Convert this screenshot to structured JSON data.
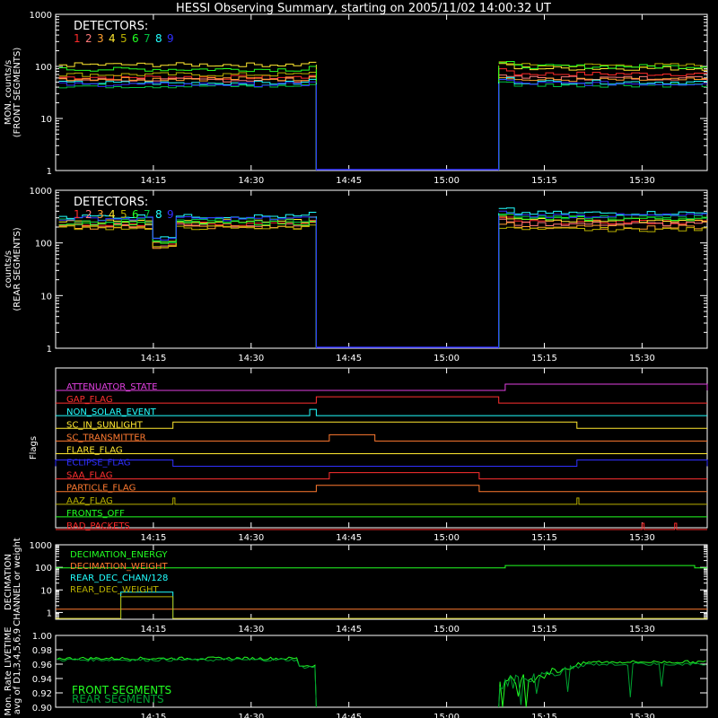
{
  "title": "HESSI Observing Summary, starting on 2005/11/02 14:00:32 UT",
  "colors": {
    "d1": "#ff2a2a",
    "d2": "#ff7a7a",
    "d3": "#ffa030",
    "d4": "#ffe830",
    "d5": "#b8b000",
    "d6": "#22ff22",
    "d7": "#00c040",
    "d8": "#22ffff",
    "d9": "#3030ff",
    "axis": "#ffffff"
  },
  "time_ticks": [
    "14:15",
    "14:30",
    "14:45",
    "15:00",
    "15:15",
    "15:30"
  ],
  "chart_data": [
    {
      "type": "line",
      "panel": "front",
      "ylabel": [
        "MON. counts/s",
        "(FRONT SEGMENTS)"
      ],
      "yscale": "log",
      "ylim": [
        1,
        1000
      ],
      "yticks": [
        "1",
        "10",
        "100",
        "1000"
      ],
      "legend_title": "DETECTORS:",
      "legend_numbers": [
        "1",
        "2",
        "3",
        "4",
        "5",
        "6",
        "7",
        "8",
        "9"
      ],
      "data_gap": [
        "14:40",
        "15:08"
      ],
      "series": [
        {
          "name": "1",
          "pre": 62,
          "post": 72
        },
        {
          "name": "2",
          "pre": 55,
          "post": 60
        },
        {
          "name": "3",
          "pre": 58,
          "post": 55
        },
        {
          "name": "4",
          "pre": 108,
          "post": 92
        },
        {
          "name": "5",
          "pre": 70,
          "post": 105
        },
        {
          "name": "6",
          "pre": 88,
          "post": 100
        },
        {
          "name": "7",
          "pre": 42,
          "post": 44
        },
        {
          "name": "8",
          "pre": 48,
          "post": 50
        },
        {
          "name": "9",
          "pre": 45,
          "post": 47
        }
      ]
    },
    {
      "type": "line",
      "panel": "rear",
      "ylabel": [
        "counts/s",
        "(REAR SEGMENTS)"
      ],
      "yscale": "log",
      "ylim": [
        1,
        1000
      ],
      "yticks": [
        "1",
        "10",
        "100",
        "1000"
      ],
      "legend_title": "DETECTORS:",
      "legend_numbers": [
        "1",
        "2",
        "3",
        "4",
        "5",
        "6",
        "7",
        "8",
        "9"
      ],
      "data_gap": [
        "14:40",
        "15:08"
      ],
      "series": [
        {
          "name": "1",
          "pre": 230,
          "post": 250
        },
        {
          "name": "2",
          "pre": 215,
          "post": 230
        },
        {
          "name": "3",
          "pre": 200,
          "post": 200
        },
        {
          "name": "4",
          "pre": 260,
          "post": 270
        },
        {
          "name": "5",
          "pre": 195,
          "post": 180
        },
        {
          "name": "6",
          "pre": 240,
          "post": 290
        },
        {
          "name": "7",
          "pre": 265,
          "post": 310
        },
        {
          "name": "8",
          "pre": 320,
          "post": 370
        },
        {
          "name": "9",
          "pre": 290,
          "post": 330
        }
      ]
    },
    {
      "type": "line",
      "panel": "flags",
      "ylabel": "Flags",
      "flags": [
        {
          "label": "ATTENUATOR_STATE",
          "color": "#e040e0",
          "on": [
            [
              "15:09",
              "end"
            ]
          ]
        },
        {
          "label": "GAP_FLAG",
          "color": "#ff3030",
          "on": [
            [
              "14:40",
              "15:08"
            ]
          ]
        },
        {
          "label": "NON_SOLAR_EVENT",
          "color": "#22ffff",
          "on": [
            [
              "14:39",
              "14:40"
            ]
          ]
        },
        {
          "label": "SC_IN_SUNLIGHT",
          "color": "#ffe830",
          "on": [
            [
              "14:18",
              "15:20"
            ]
          ]
        },
        {
          "label": "SC_TRANSMITTER",
          "color": "#ff7a30",
          "on": [
            [
              "14:42",
              "14:49"
            ]
          ]
        },
        {
          "label": "FLARE_FLAG",
          "color": "#ffe830",
          "on": []
        },
        {
          "label": "ECLIPSE_FLAG",
          "color": "#3030ff",
          "on": [
            [
              "start",
              "14:18"
            ],
            [
              "15:20",
              "end"
            ]
          ]
        },
        {
          "label": "SAA_FLAG",
          "color": "#ff3030",
          "on": [
            [
              "14:42",
              "15:05"
            ]
          ]
        },
        {
          "label": "PARTICLE_FLAG",
          "color": "#ff7a30",
          "on": [
            [
              "14:40",
              "15:05"
            ]
          ]
        },
        {
          "label": "AAZ_FLAG",
          "color": "#b8b000",
          "on": [
            [
              "14:18",
              "14:18"
            ],
            [
              "15:20",
              "15:20"
            ]
          ]
        },
        {
          "label": "FRONTS_OFF",
          "color": "#22ff22",
          "on": []
        },
        {
          "label": "BAD_PACKETS",
          "color": "#ff2a2a",
          "on": [
            [
              "15:30",
              "15:30"
            ],
            [
              "15:35",
              "15:35"
            ]
          ]
        }
      ]
    },
    {
      "type": "line",
      "panel": "decimation",
      "ylabel": [
        "DECIMATION",
        "CHANNEL or weight"
      ],
      "yscale": "log",
      "ylim": [
        0.5,
        1000
      ],
      "yticks": [
        "1",
        "10",
        "100",
        "1000"
      ],
      "series": [
        {
          "name": "DECIMATION_ENERGY",
          "color": "#22ff22",
          "pre": 95,
          "post": 120
        },
        {
          "name": "DECIMATION_WEIGHT",
          "color": "#ff7a30",
          "pre": 1.4,
          "post": 1.4
        },
        {
          "name": "REAR_DEC_CHAN/128",
          "color": "#22ffff",
          "box": [
            "14:10",
            "14:18"
          ],
          "value": 8
        },
        {
          "name": "REAR_DEC_WEIGHT",
          "color": "#b8b000",
          "box": [
            "14:10",
            "14:18"
          ],
          "value": 5
        }
      ]
    },
    {
      "type": "line",
      "panel": "livetime",
      "ylabel": [
        "Mon. Rate LIVETIME",
        "avg of D1,3,4,5,6,9"
      ],
      "ylim": [
        0.9,
        1.0
      ],
      "yticks": [
        "0.90",
        "0.92",
        "0.94",
        "0.96",
        "0.98",
        "1.00"
      ],
      "series": [
        {
          "name": "FRONT SEGMENTS",
          "color": "#22ff22",
          "pre": 0.968,
          "post": 0.963
        },
        {
          "name": "REAR SEGMENTS",
          "color": "#00a030",
          "pre": 0.966,
          "post": 0.96
        }
      ]
    }
  ]
}
